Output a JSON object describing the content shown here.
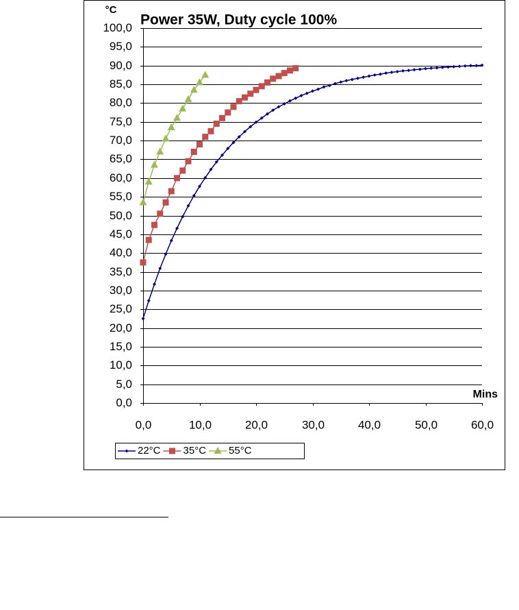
{
  "chart_data": {
    "type": "line",
    "title": "Power 35W, Duty cycle 100%",
    "y_label": "°C",
    "x_label": "Mins",
    "xlim": [
      0,
      60
    ],
    "ylim": [
      0,
      100
    ],
    "xticks": [
      {
        "value": 0,
        "label": "0,0"
      },
      {
        "value": 10,
        "label": "10,0"
      },
      {
        "value": 20,
        "label": "20,0"
      },
      {
        "value": 30,
        "label": "30,0"
      },
      {
        "value": 40,
        "label": "40,0"
      },
      {
        "value": 50,
        "label": "50,0"
      },
      {
        "value": 60,
        "label": "60,0"
      }
    ],
    "yticks": [
      {
        "value": 0,
        "label": "0,0"
      },
      {
        "value": 5,
        "label": "5,0"
      },
      {
        "value": 10,
        "label": "10,0"
      },
      {
        "value": 15,
        "label": "15,0"
      },
      {
        "value": 20,
        "label": "20,0"
      },
      {
        "value": 25,
        "label": "25,0"
      },
      {
        "value": 30,
        "label": "30,0"
      },
      {
        "value": 35,
        "label": "35,0"
      },
      {
        "value": 40,
        "label": "40,0"
      },
      {
        "value": 45,
        "label": "45,0"
      },
      {
        "value": 50,
        "label": "50,0"
      },
      {
        "value": 55,
        "label": "55,0"
      },
      {
        "value": 60,
        "label": "60,0"
      },
      {
        "value": 65,
        "label": "65,0"
      },
      {
        "value": 70,
        "label": "70,0"
      },
      {
        "value": 75,
        "label": "75,0"
      },
      {
        "value": 80,
        "label": "80,0"
      },
      {
        "value": 85,
        "label": "85,0"
      },
      {
        "value": 90,
        "label": "90,0"
      },
      {
        "value": 95,
        "label": "95,0"
      },
      {
        "value": 100,
        "label": "100,0"
      }
    ],
    "grid": true,
    "legend": "bottom",
    "series": [
      {
        "name": "22°C",
        "color": "#000080",
        "marker": "diamond",
        "x": [
          0,
          1,
          2,
          3,
          4,
          5,
          6,
          7,
          8,
          9,
          10,
          11,
          12,
          13,
          14,
          15,
          16,
          17,
          18,
          19,
          20,
          21,
          22,
          23,
          24,
          25,
          26,
          27,
          28,
          29,
          30,
          31,
          32,
          33,
          34,
          35,
          36,
          37,
          38,
          39,
          40,
          41,
          42,
          43,
          44,
          45,
          46,
          47,
          48,
          49,
          50,
          51,
          52,
          53,
          54,
          55,
          56,
          57,
          58,
          59,
          60
        ],
        "values": [
          22.5,
          27.3,
          31.7,
          35.9,
          39.7,
          43.3,
          46.6,
          49.7,
          52.6,
          55.3,
          57.8,
          60.1,
          62.3,
          64.3,
          66.1,
          67.9,
          69.5,
          71.0,
          72.4,
          73.7,
          74.9,
          76.0,
          77.1,
          78.1,
          79.0,
          79.8,
          80.6,
          81.3,
          82.0,
          82.6,
          83.2,
          83.7,
          84.3,
          84.7,
          85.2,
          85.6,
          86.0,
          86.3,
          86.6,
          86.9,
          87.2,
          87.5,
          87.7,
          88.0,
          88.2,
          88.4,
          88.6,
          88.7,
          88.9,
          89.0,
          89.2,
          89.3,
          89.4,
          89.5,
          89.6,
          89.7,
          89.8,
          89.9,
          90.0,
          90.0,
          90.1
        ]
      },
      {
        "name": "35°C",
        "color": "#c0504d",
        "marker": "square",
        "x": [
          0,
          1,
          2,
          3,
          4,
          5,
          6,
          7,
          8,
          9,
          10,
          11,
          12,
          13,
          14,
          15,
          16,
          17,
          18,
          19,
          20,
          21,
          22,
          23,
          24,
          25,
          26,
          27
        ],
        "values": [
          37.5,
          43.5,
          47.5,
          50.5,
          53.5,
          56.5,
          60,
          62,
          64.5,
          67,
          69,
          71,
          72.5,
          74.5,
          76,
          77.5,
          79,
          80.5,
          81.5,
          82.5,
          83.5,
          84.5,
          85.5,
          86.5,
          87.2,
          88,
          88.7,
          89.3
        ]
      },
      {
        "name": "55°C",
        "color": "#9bbb59",
        "marker": "triangle",
        "x": [
          0,
          1,
          2,
          3,
          4,
          5,
          6,
          7,
          8,
          9,
          10,
          11
        ],
        "values": [
          53.5,
          59,
          63.5,
          67,
          70.5,
          73.5,
          76,
          78.5,
          81,
          83.5,
          85.5,
          87.5
        ]
      }
    ]
  }
}
